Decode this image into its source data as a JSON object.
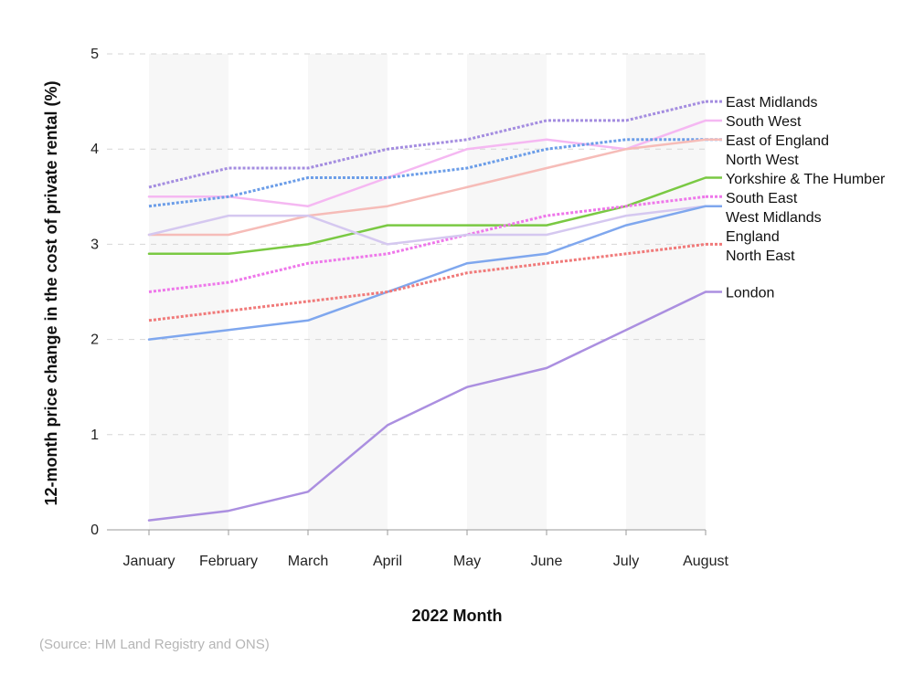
{
  "chart_data": {
    "type": "line",
    "xlabel": "2022 Month",
    "ylabel": "12-month price change in the cost of private rental (%)",
    "ylim": [
      0,
      5
    ],
    "yticks": [
      0,
      1,
      2,
      3,
      4,
      5
    ],
    "grid": true,
    "legend": "labels at line ends (right)",
    "categories": [
      "January",
      "February",
      "March",
      "April",
      "May",
      "June",
      "July",
      "August"
    ],
    "series": [
      {
        "name": "East Midlands",
        "values": [
          3.6,
          3.8,
          3.8,
          4.0,
          4.1,
          4.3,
          4.3,
          4.5
        ],
        "color": "#a48de0",
        "dashed": true
      },
      {
        "name": "South West",
        "values": [
          3.5,
          3.5,
          3.4,
          3.7,
          4.0,
          4.1,
          4.0,
          4.3
        ],
        "color": "#f5b8f2",
        "dashed": false
      },
      {
        "name": "East of England",
        "values": [
          3.4,
          3.5,
          3.7,
          3.7,
          3.8,
          4.0,
          4.1,
          4.1
        ],
        "color": "#6b9de8",
        "dashed": true
      },
      {
        "name": "North West",
        "values": [
          3.1,
          3.1,
          3.3,
          3.4,
          3.6,
          3.8,
          4.0,
          4.1
        ],
        "color": "#f6bcb8",
        "dashed": false
      },
      {
        "name": "Yorkshire & The Humber",
        "values": [
          2.9,
          2.9,
          3.0,
          3.2,
          3.2,
          3.2,
          3.4,
          3.7
        ],
        "color": "#7ac943",
        "dashed": false
      },
      {
        "name": "South East",
        "values": [
          2.5,
          2.6,
          2.8,
          2.9,
          3.1,
          3.3,
          3.4,
          3.5
        ],
        "color": "#ee77ea",
        "dashed": true
      },
      {
        "name": "West Midlands",
        "values": [
          3.1,
          3.3,
          3.3,
          3.0,
          3.1,
          3.1,
          3.3,
          3.4
        ],
        "color": "#d5c8f0",
        "dashed": false
      },
      {
        "name": "England",
        "values": [
          2.0,
          2.1,
          2.2,
          2.5,
          2.8,
          2.9,
          3.2,
          3.4
        ],
        "color": "#7fa7ee",
        "dashed": false
      },
      {
        "name": "North East",
        "values": [
          2.2,
          2.3,
          2.4,
          2.5,
          2.7,
          2.8,
          2.9,
          3.0
        ],
        "color": "#f07a7a",
        "dashed": true
      },
      {
        "name": "London",
        "values": [
          0.1,
          0.2,
          0.4,
          1.1,
          1.5,
          1.7,
          2.1,
          2.5
        ],
        "color": "#ab8fe0",
        "dashed": false
      }
    ]
  },
  "source": "(Source: HM Land Registry and ONS)"
}
